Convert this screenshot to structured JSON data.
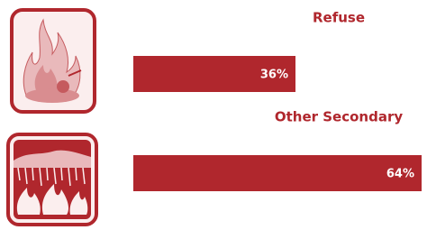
{
  "chart_data": {
    "type": "bar",
    "orientation": "horizontal",
    "categories": [
      "Refuse",
      "Other Secondary"
    ],
    "values": [
      36,
      64
    ],
    "value_labels": [
      "36%",
      "64%"
    ],
    "color": "#b0272d"
  }
}
